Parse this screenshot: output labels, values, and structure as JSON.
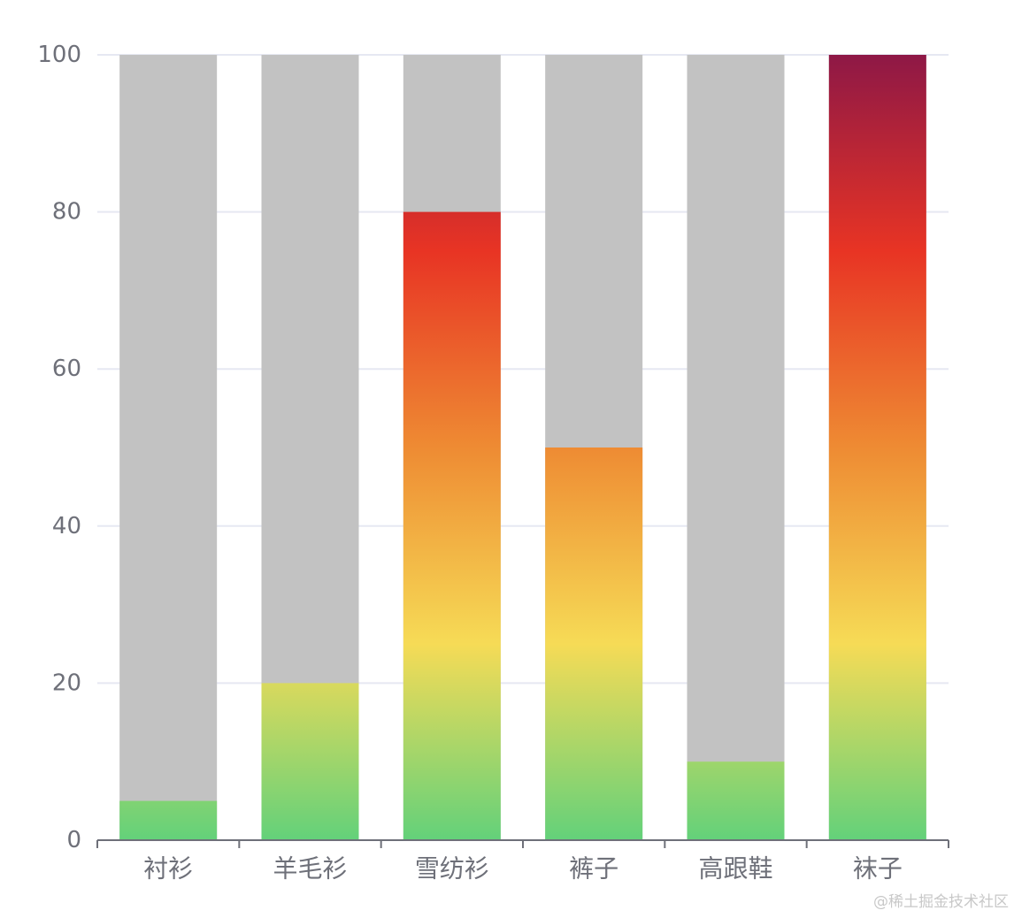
{
  "chart_data": {
    "type": "bar",
    "categories": [
      "衬衫",
      "羊毛衫",
      "雪纺衫",
      "裤子",
      "高跟鞋",
      "袜子"
    ],
    "values": [
      5,
      20,
      80,
      50,
      10,
      100
    ],
    "background_value": 100,
    "ylim": [
      0,
      100
    ],
    "yticks": [
      0,
      20,
      40,
      60,
      80,
      100
    ],
    "title": "",
    "xlabel": "",
    "ylabel": "",
    "grid": true,
    "colors": {
      "background_bar": "#c2c2c2",
      "gridline": "#e6e8f2",
      "axis": "#6e7079",
      "tick_label": "#6e7079",
      "gradient_stops": [
        {
          "value": 0,
          "color": "#63d17a"
        },
        {
          "value": 25,
          "color": "#f6db56"
        },
        {
          "value": 50,
          "color": "#ee8b33"
        },
        {
          "value": 75,
          "color": "#e83424"
        },
        {
          "value": 100,
          "color": "#8e1846"
        }
      ]
    }
  },
  "watermark": "@稀土掘金技术社区"
}
